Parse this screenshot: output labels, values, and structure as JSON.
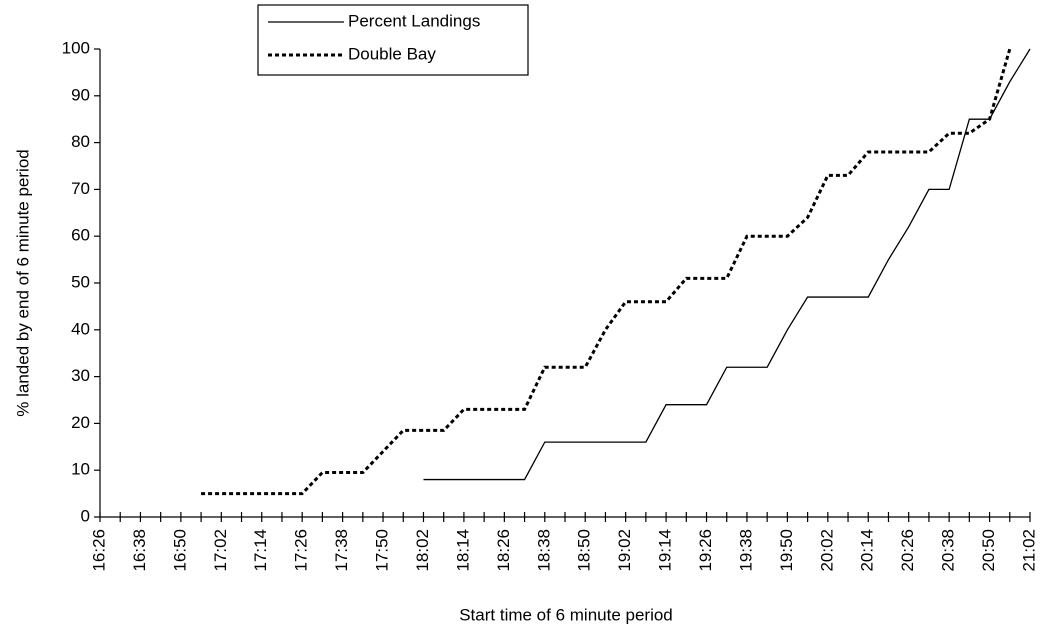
{
  "chart_data": {
    "type": "line",
    "x_label": "Start time of 6 minute period",
    "y_label": "% landed by end of 6 minute period",
    "categories": [
      "16:26",
      null,
      "16:38",
      null,
      "16:50",
      null,
      "17:02",
      null,
      "17:14",
      null,
      "17:26",
      null,
      "17:38",
      null,
      "17:50",
      null,
      "18:02",
      null,
      "18:14",
      null,
      "18:26",
      null,
      "18:38",
      null,
      "18:50",
      null,
      "19:02",
      null,
      "19:14",
      null,
      "19:26",
      null,
      "19:38",
      null,
      "19:50",
      null,
      "20:02",
      null,
      "20:14",
      null,
      "20:26",
      null,
      "20:38",
      null,
      "20:50",
      null,
      "21:02"
    ],
    "series": [
      {
        "name": "Percent Landings",
        "color": "#000000",
        "dash": "none",
        "values": [
          null,
          null,
          null,
          null,
          null,
          null,
          null,
          null,
          null,
          null,
          null,
          null,
          null,
          null,
          null,
          null,
          8,
          8,
          8,
          8,
          8,
          8,
          16,
          16,
          16,
          16,
          16,
          16,
          24,
          24,
          24,
          32,
          32,
          32,
          40,
          47,
          47,
          47,
          47,
          55,
          62,
          70,
          70,
          85,
          85,
          93,
          100
        ]
      },
      {
        "name": "Double Bay",
        "color": "#000000",
        "dash": "4 3",
        "values": [
          null,
          null,
          null,
          null,
          null,
          5,
          5,
          5,
          5,
          5,
          5,
          9.5,
          9.5,
          9.5,
          14,
          18.5,
          18.5,
          18.5,
          23,
          23,
          23,
          23,
          32,
          32,
          32,
          40,
          46,
          46,
          46,
          51,
          51,
          51,
          60,
          60,
          60,
          64,
          73,
          73,
          78,
          78,
          78,
          78,
          82,
          82,
          85,
          100,
          null
        ]
      }
    ],
    "ylim": [
      0,
      100
    ],
    "yticks": [
      0,
      10,
      20,
      30,
      40,
      50,
      60,
      70,
      80,
      90,
      100
    ],
    "grid": false,
    "legend": "top-left"
  }
}
